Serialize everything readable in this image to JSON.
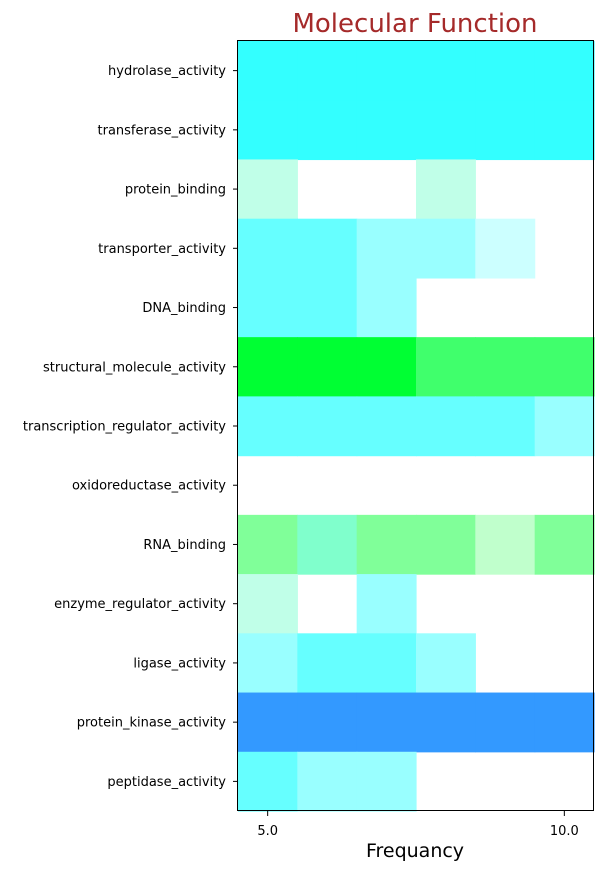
{
  "chart_data": {
    "type": "heatmap",
    "title": "Molecular Function",
    "title_color": "#a52a2a",
    "xlabel": "Frequancy",
    "ylabel": "",
    "x_ticks": [
      {
        "value": 5,
        "label": "5.0"
      },
      {
        "value": 10,
        "label": "10.0"
      }
    ],
    "x_columns": [
      5,
      6,
      7,
      8,
      9,
      10
    ],
    "rows": [
      {
        "label": "hydrolase_activity",
        "colors": [
          "#33ffff",
          "#33ffff",
          "#33ffff",
          "#33ffff",
          "#33ffff",
          "#33ffff"
        ]
      },
      {
        "label": "transferase_activity",
        "colors": [
          "#33ffff",
          "#33ffff",
          "#33ffff",
          "#33ffff",
          "#33ffff",
          "#33ffff"
        ]
      },
      {
        "label": "protein_binding",
        "colors": [
          "#c0ffe8",
          null,
          null,
          "#c0ffe8",
          null,
          null
        ]
      },
      {
        "label": "transporter_activity",
        "colors": [
          "#66ffff",
          "#66ffff",
          "#99ffff",
          "#99ffff",
          "#ccffff",
          null
        ]
      },
      {
        "label": "DNA_binding",
        "colors": [
          "#66ffff",
          "#66ffff",
          "#99ffff",
          null,
          null,
          null
        ]
      },
      {
        "label": "structural_molecule_activity",
        "colors": [
          "#00ff33",
          "#00ff33",
          "#00ff33",
          "#40ff6c",
          "#40ff6c",
          "#40ff6c"
        ]
      },
      {
        "label": "transcription_regulator_activity",
        "colors": [
          "#66ffff",
          "#66ffff",
          "#66ffff",
          "#66ffff",
          "#66ffff",
          "#99ffff"
        ]
      },
      {
        "label": "oxidoreductase_activity",
        "colors": [
          null,
          null,
          null,
          null,
          null,
          null
        ]
      },
      {
        "label": "RNA_binding",
        "colors": [
          "#80ff99",
          "#80ffcc",
          "#80ff99",
          "#80ff99",
          "#c0ffcc",
          "#80ff99"
        ]
      },
      {
        "label": "enzyme_regulator_activity",
        "colors": [
          "#c0ffe8",
          null,
          "#99ffff",
          null,
          null,
          null
        ]
      },
      {
        "label": "ligase_activity",
        "colors": [
          "#99ffff",
          "#66ffff",
          "#66ffff",
          "#99ffff",
          null,
          null
        ]
      },
      {
        "label": "protein_kinase_activity",
        "colors": [
          "#3399ff",
          "#3399ff",
          "#3399ff",
          "#3399ff",
          "#3399ff",
          "#3399ff"
        ]
      },
      {
        "label": "peptidase_activity",
        "colors": [
          "#66ffff",
          "#99ffff",
          "#99ffff",
          null,
          null,
          null
        ]
      }
    ],
    "grid": false,
    "legend": "none"
  }
}
